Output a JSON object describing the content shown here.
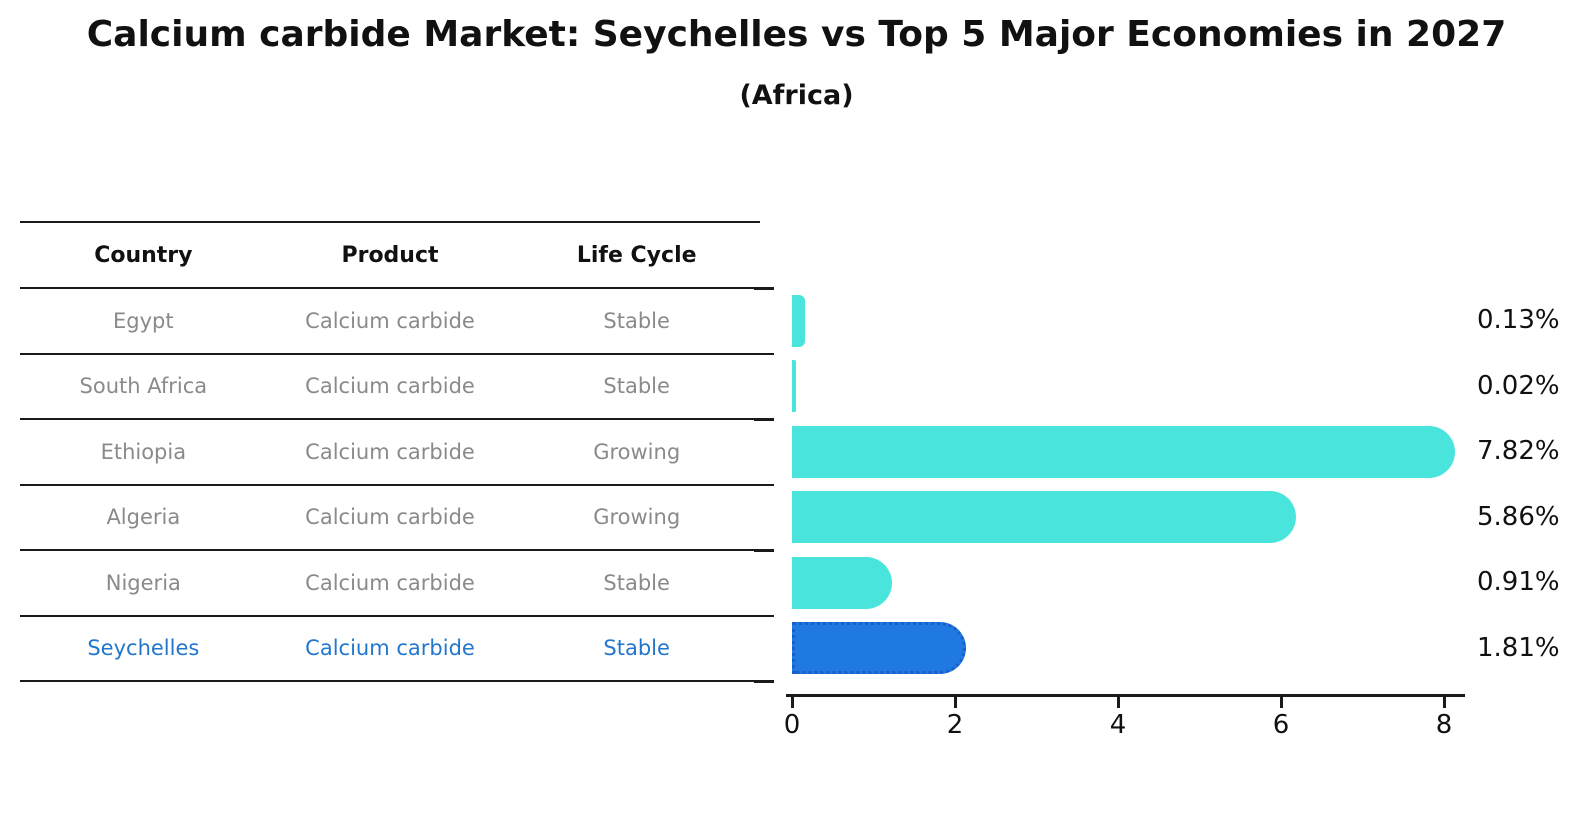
{
  "header": {
    "title": "Calcium carbide Market: Seychelles vs Top 5 Major Economies in 2027",
    "subtitle": "(Africa)"
  },
  "table": {
    "headers": [
      "Country",
      "Product",
      "Life Cycle"
    ],
    "rows": [
      {
        "country": "Egypt",
        "product": "Calcium carbide",
        "life_cycle": "Stable",
        "highlight": false
      },
      {
        "country": "South Africa",
        "product": "Calcium carbide",
        "life_cycle": "Stable",
        "highlight": false
      },
      {
        "country": "Ethiopia",
        "product": "Calcium carbide",
        "life_cycle": "Growing",
        "highlight": false
      },
      {
        "country": "Algeria",
        "product": "Calcium carbide",
        "life_cycle": "Growing",
        "highlight": false
      },
      {
        "country": "Nigeria",
        "product": "Calcium carbide",
        "life_cycle": "Stable",
        "highlight": false
      },
      {
        "country": "Seychelles",
        "product": "Calcium carbide",
        "life_cycle": "Stable",
        "highlight": true
      }
    ]
  },
  "chart_data": {
    "type": "bar",
    "orientation": "horizontal",
    "title": "Calcium carbide Market: Seychelles vs Top 5 Major Economies in 2027",
    "subtitle": "(Africa)",
    "categories": [
      "Egypt",
      "South Africa",
      "Ethiopia",
      "Algeria",
      "Nigeria",
      "Seychelles"
    ],
    "values": [
      0.13,
      0.02,
      7.82,
      5.86,
      0.91,
      1.81
    ],
    "value_labels": [
      "0.13%",
      "0.02%",
      "7.82%",
      "5.86%",
      "0.91%",
      "1.81%"
    ],
    "x_ticks": [
      0,
      2,
      4,
      6,
      8
    ],
    "xlim": [
      0,
      8.3
    ],
    "grid": false,
    "legend": "none",
    "highlight_index": 5
  },
  "colors": {
    "bar": "#49e5dc",
    "highlight_bar": "#2078e2",
    "highlight_border": "#1a5fc8",
    "highlight_text": "#2277cd",
    "row_text": "#8a8a8a",
    "axis": "#1a1a1a",
    "title_text": "#111111"
  }
}
